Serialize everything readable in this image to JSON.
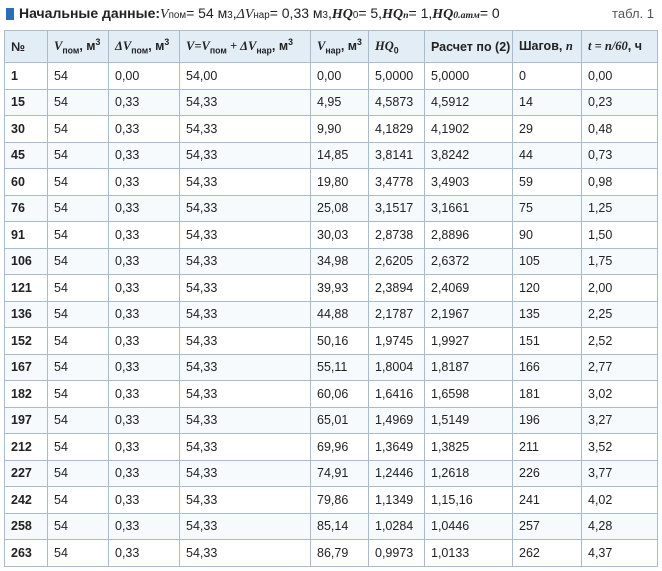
{
  "header": {
    "title": [
      {
        "b": "Начальные данные: "
      },
      {
        "i": "V"
      },
      {
        "sub": "пом"
      },
      {
        "t": " = 54 м"
      },
      {
        "sup": "3"
      },
      {
        "t": ", "
      },
      {
        "i": "ΔV"
      },
      {
        "sub": "нар"
      },
      {
        "t": " = 0,33 м"
      },
      {
        "sup": "3"
      },
      {
        "t": ", "
      },
      {
        "bi": "HQ"
      },
      {
        "sub": "0"
      },
      {
        "t": " = 5, "
      },
      {
        "bi": "HQ"
      },
      {
        "subi": "n"
      },
      {
        "t": " = 1, "
      },
      {
        "bi": "HQ"
      },
      {
        "subb": "0.атм"
      },
      {
        "t": " = 0"
      }
    ],
    "label": "табл. 1"
  },
  "table": {
    "columns": [
      [
        {
          "t": "№"
        }
      ],
      [
        {
          "i": "V"
        },
        {
          "sub": "пом"
        },
        {
          "t": ", м"
        },
        {
          "sup": "3"
        }
      ],
      [
        {
          "i": "ΔV"
        },
        {
          "sub": "пом"
        },
        {
          "t": ", м"
        },
        {
          "sup": "3"
        }
      ],
      [
        {
          "i": "V=V"
        },
        {
          "sub": "пом"
        },
        {
          "i": " + ΔV"
        },
        {
          "sub": "нар"
        },
        {
          "t": ", м"
        },
        {
          "sup": "3"
        }
      ],
      [
        {
          "i": "V"
        },
        {
          "sub": "нар"
        },
        {
          "t": ", м"
        },
        {
          "sup": "3"
        }
      ],
      [
        {
          "i": "HQ"
        },
        {
          "sub": "0"
        }
      ],
      [
        {
          "t": "Расчет по (2)"
        }
      ],
      [
        {
          "t": "Шагов, "
        },
        {
          "i": "n"
        }
      ],
      [
        {
          "i": "t = n"
        },
        {
          "i": "/60"
        },
        {
          "t": ", ч"
        }
      ]
    ],
    "rows": [
      [
        "1",
        "54",
        "0,00",
        "54,00",
        "0,00",
        "5,0000",
        "5,0000",
        "0",
        "0,00"
      ],
      [
        "15",
        "54",
        "0,33",
        "54,33",
        "4,95",
        "4,5873",
        "4,5912",
        "14",
        "0,23"
      ],
      [
        "30",
        "54",
        "0,33",
        "54,33",
        "9,90",
        "4,1829",
        "4,1902",
        "29",
        "0,48"
      ],
      [
        "45",
        "54",
        "0,33",
        "54,33",
        "14,85",
        "3,8141",
        "3,8242",
        "44",
        "0,73"
      ],
      [
        "60",
        "54",
        "0,33",
        "54,33",
        "19,80",
        "3,4778",
        "3,4903",
        "59",
        "0,98"
      ],
      [
        "76",
        "54",
        "0,33",
        "54,33",
        "25,08",
        "3,1517",
        "3,1661",
        "75",
        "1,25"
      ],
      [
        "91",
        "54",
        "0,33",
        "54,33",
        "30,03",
        "2,8738",
        "2,8896",
        "90",
        "1,50"
      ],
      [
        "106",
        "54",
        "0,33",
        "54,33",
        "34,98",
        "2,6205",
        "2,6372",
        "105",
        "1,75"
      ],
      [
        "121",
        "54",
        "0,33",
        "54,33",
        "39,93",
        "2,3894",
        "2,4069",
        "120",
        "2,00"
      ],
      [
        "136",
        "54",
        "0,33",
        "54,33",
        "44,88",
        "2,1787",
        "2,1967",
        "135",
        "2,25"
      ],
      [
        "152",
        "54",
        "0,33",
        "54,33",
        "50,16",
        "1,9745",
        "1,9927",
        "151",
        "2,52"
      ],
      [
        "167",
        "54",
        "0,33",
        "54,33",
        "55,11",
        "1,8004",
        "1,8187",
        "166",
        "2,77"
      ],
      [
        "182",
        "54",
        "0,33",
        "54,33",
        "60,06",
        "1,6416",
        "1,6598",
        "181",
        "3,02"
      ],
      [
        "197",
        "54",
        "0,33",
        "54,33",
        "65,01",
        "1,4969",
        "1,5149",
        "196",
        "3,27"
      ],
      [
        "212",
        "54",
        "0,33",
        "54,33",
        "69,96",
        "1,3649",
        "1,3825",
        "211",
        "3,52"
      ],
      [
        "227",
        "54",
        "0,33",
        "54,33",
        "74,91",
        "1,2446",
        "1,2618",
        "226",
        "3,77"
      ],
      [
        "242",
        "54",
        "0,33",
        "54,33",
        "79,86",
        "1,1349",
        "1,15,16",
        "241",
        "4,02"
      ],
      [
        "258",
        "54",
        "0,33",
        "54,33",
        "85,14",
        "1,0284",
        "1,0446",
        "257",
        "4,28"
      ],
      [
        "263",
        "54",
        "0,33",
        "54,33",
        "86,79",
        "0,9973",
        "1,0133",
        "262",
        "4,37"
      ]
    ]
  }
}
